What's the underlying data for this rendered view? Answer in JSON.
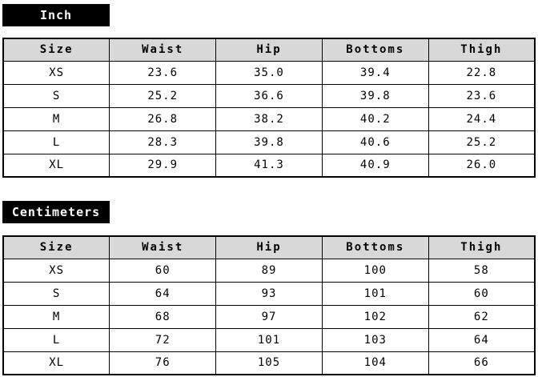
{
  "colors": {
    "label_bg": "#000000",
    "label_text": "#ffffff",
    "header_bg": "#d8d8d8",
    "border": "#000000"
  },
  "chart_data": [
    {
      "type": "table",
      "title": "Inch",
      "columns": [
        "Size",
        "Waist",
        "Hip",
        "Bottoms",
        "Thigh"
      ],
      "rows": [
        [
          "XS",
          "23.6",
          "35.0",
          "39.4",
          "22.8"
        ],
        [
          "S",
          "25.2",
          "36.6",
          "39.8",
          "23.6"
        ],
        [
          "M",
          "26.8",
          "38.2",
          "40.2",
          "24.4"
        ],
        [
          "L",
          "28.3",
          "39.8",
          "40.6",
          "25.2"
        ],
        [
          "XL",
          "29.9",
          "41.3",
          "40.9",
          "26.0"
        ]
      ]
    },
    {
      "type": "table",
      "title": "Centimeters",
      "columns": [
        "Size",
        "Waist",
        "Hip",
        "Bottoms",
        "Thigh"
      ],
      "rows": [
        [
          "XS",
          "60",
          "89",
          "100",
          "58"
        ],
        [
          "S",
          "64",
          "93",
          "101",
          "60"
        ],
        [
          "M",
          "68",
          "97",
          "102",
          "62"
        ],
        [
          "L",
          "72",
          "101",
          "103",
          "64"
        ],
        [
          "XL",
          "76",
          "105",
          "104",
          "66"
        ]
      ]
    }
  ]
}
